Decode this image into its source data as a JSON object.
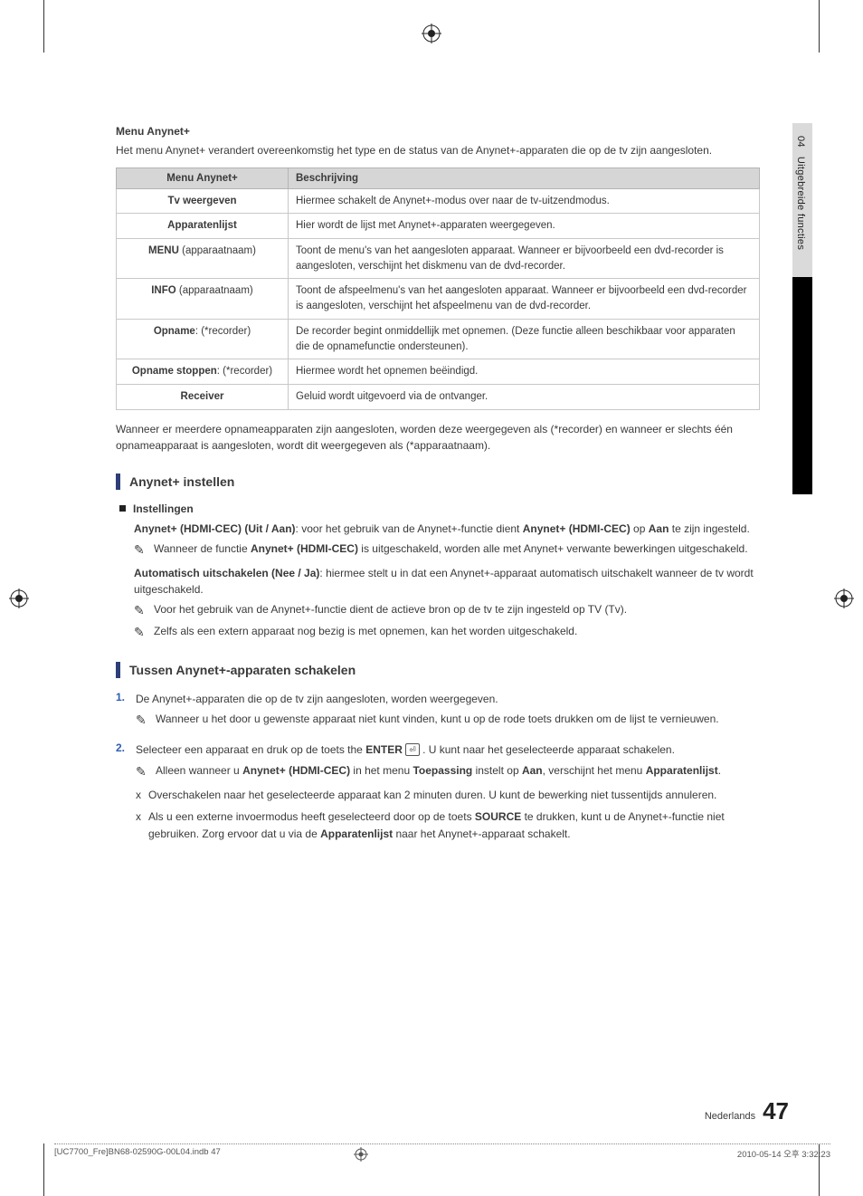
{
  "side_tab": {
    "chapter_num": "04",
    "chapter_title": "Uitgebreide functies"
  },
  "menu": {
    "title": "Menu Anynet+",
    "intro": "Het menu Anynet+ verandert overeenkomstig het type en de status van de Anynet+-apparaten die op de tv zijn aangesloten."
  },
  "table": {
    "header_left": "Menu Anynet+",
    "header_right": "Beschrijving",
    "rows": [
      {
        "label_html": "<b>Tv weergeven</b>",
        "desc": "Hiermee schakelt de Anynet+-modus over naar de tv-uitzendmodus."
      },
      {
        "label_html": "<b>Apparatenlijst</b>",
        "desc": "Hier wordt de lijst met Anynet+-apparaten weergegeven."
      },
      {
        "label_html": "<b>MENU</b> (apparaatnaam)",
        "desc": "Toont de menu's van het aangesloten apparaat. Wanneer er bijvoorbeeld een dvd-recorder is aangesloten, verschijnt het diskmenu van de dvd-recorder."
      },
      {
        "label_html": "<b>INFO</b> (apparaatnaam)",
        "desc": "Toont de afspeelmenu's van het aangesloten apparaat. Wanneer er bijvoorbeeld een dvd-recorder is aangesloten, verschijnt het afspeelmenu van de dvd-recorder."
      },
      {
        "label_html": "<b>Opname</b>: (*recorder)",
        "desc": "De recorder begint onmiddellijk met opnemen. (Deze functie alleen beschikbaar voor apparaten die de opnamefunctie ondersteunen)."
      },
      {
        "label_html": "<b>Opname stoppen</b>: (*recorder)",
        "desc": "Hiermee wordt het opnemen beëindigd."
      },
      {
        "label_html": "<b>Receiver</b>",
        "desc": "Geluid wordt uitgevoerd via de ontvanger."
      }
    ],
    "after": "Wanneer er meerdere opnameapparaten zijn aangesloten, worden deze weergegeven als (*recorder) en wanneer er slechts één opnameapparaat is aangesloten, wordt dit weergegeven als (*apparaatnaam)."
  },
  "section1": {
    "heading": "Anynet+ instellen",
    "subhead": "Instellingen",
    "p1_html": "<b>Anynet+ (HDMI-CEC) (Uit / Aan)</b>: voor het gebruik van de Anynet+-functie dient <b>Anynet+ (HDMI-CEC)</b> op <b>Aan</b> te zijn ingesteld.",
    "note1_html": "Wanneer de functie <b>Anynet+ (HDMI-CEC)</b> is uitgeschakeld, worden alle met Anynet+ verwante bewerkingen uitgeschakeld.",
    "p2_html": "<b>Automatisch uitschakelen (Nee / Ja)</b>: hiermee stelt u in dat een Anynet+-apparaat automatisch uitschakelt wanneer de tv wordt uitgeschakeld.",
    "note2": "Voor het gebruik van de Anynet+-functie dient de actieve bron op de tv te zijn ingesteld op TV (Tv).",
    "note3": "Zelfs als een extern apparaat nog bezig is met opnemen, kan het worden uitgeschakeld."
  },
  "section2": {
    "heading": "Tussen Anynet+-apparaten schakelen",
    "li1": "De Anynet+-apparaten die op de tv zijn aangesloten, worden weergegeven.",
    "li1_note": "Wanneer u het door u gewenste apparaat niet kunt vinden, kunt u op de rode toets drukken om de lijst te vernieuwen.",
    "li2_pre": "Selecteer een apparaat en druk op de toets the ",
    "li2_enter": "ENTER",
    "li2_post": ". U kunt naar het geselecteerde apparaat schakelen.",
    "li2_note_html": "Alleen wanneer u <b>Anynet+ (HDMI-CEC)</b> in het menu <b>Toepassing</b> instelt op <b>Aan</b>, verschijnt het menu <b>Apparatenlijst</b>.",
    "x1": "Overschakelen naar het geselecteerde apparaat kan 2 minuten duren. U kunt de bewerking niet tussentijds annuleren.",
    "x2_html": "Als u een externe invoermodus heeft geselecteerd door op de toets <b>SOURCE</b> te drukken, kunt u de Anynet+-functie niet gebruiken. Zorg ervoor dat u via de <b>Apparatenlijst</b> naar het Anynet+-apparaat schakelt."
  },
  "footer": {
    "lang": "Nederlands",
    "page": "47"
  },
  "print": {
    "left": "[UC7700_Fre]BN68-02590G-00L04.indb   47",
    "right": "2010-05-14   오후 3:32:23"
  }
}
